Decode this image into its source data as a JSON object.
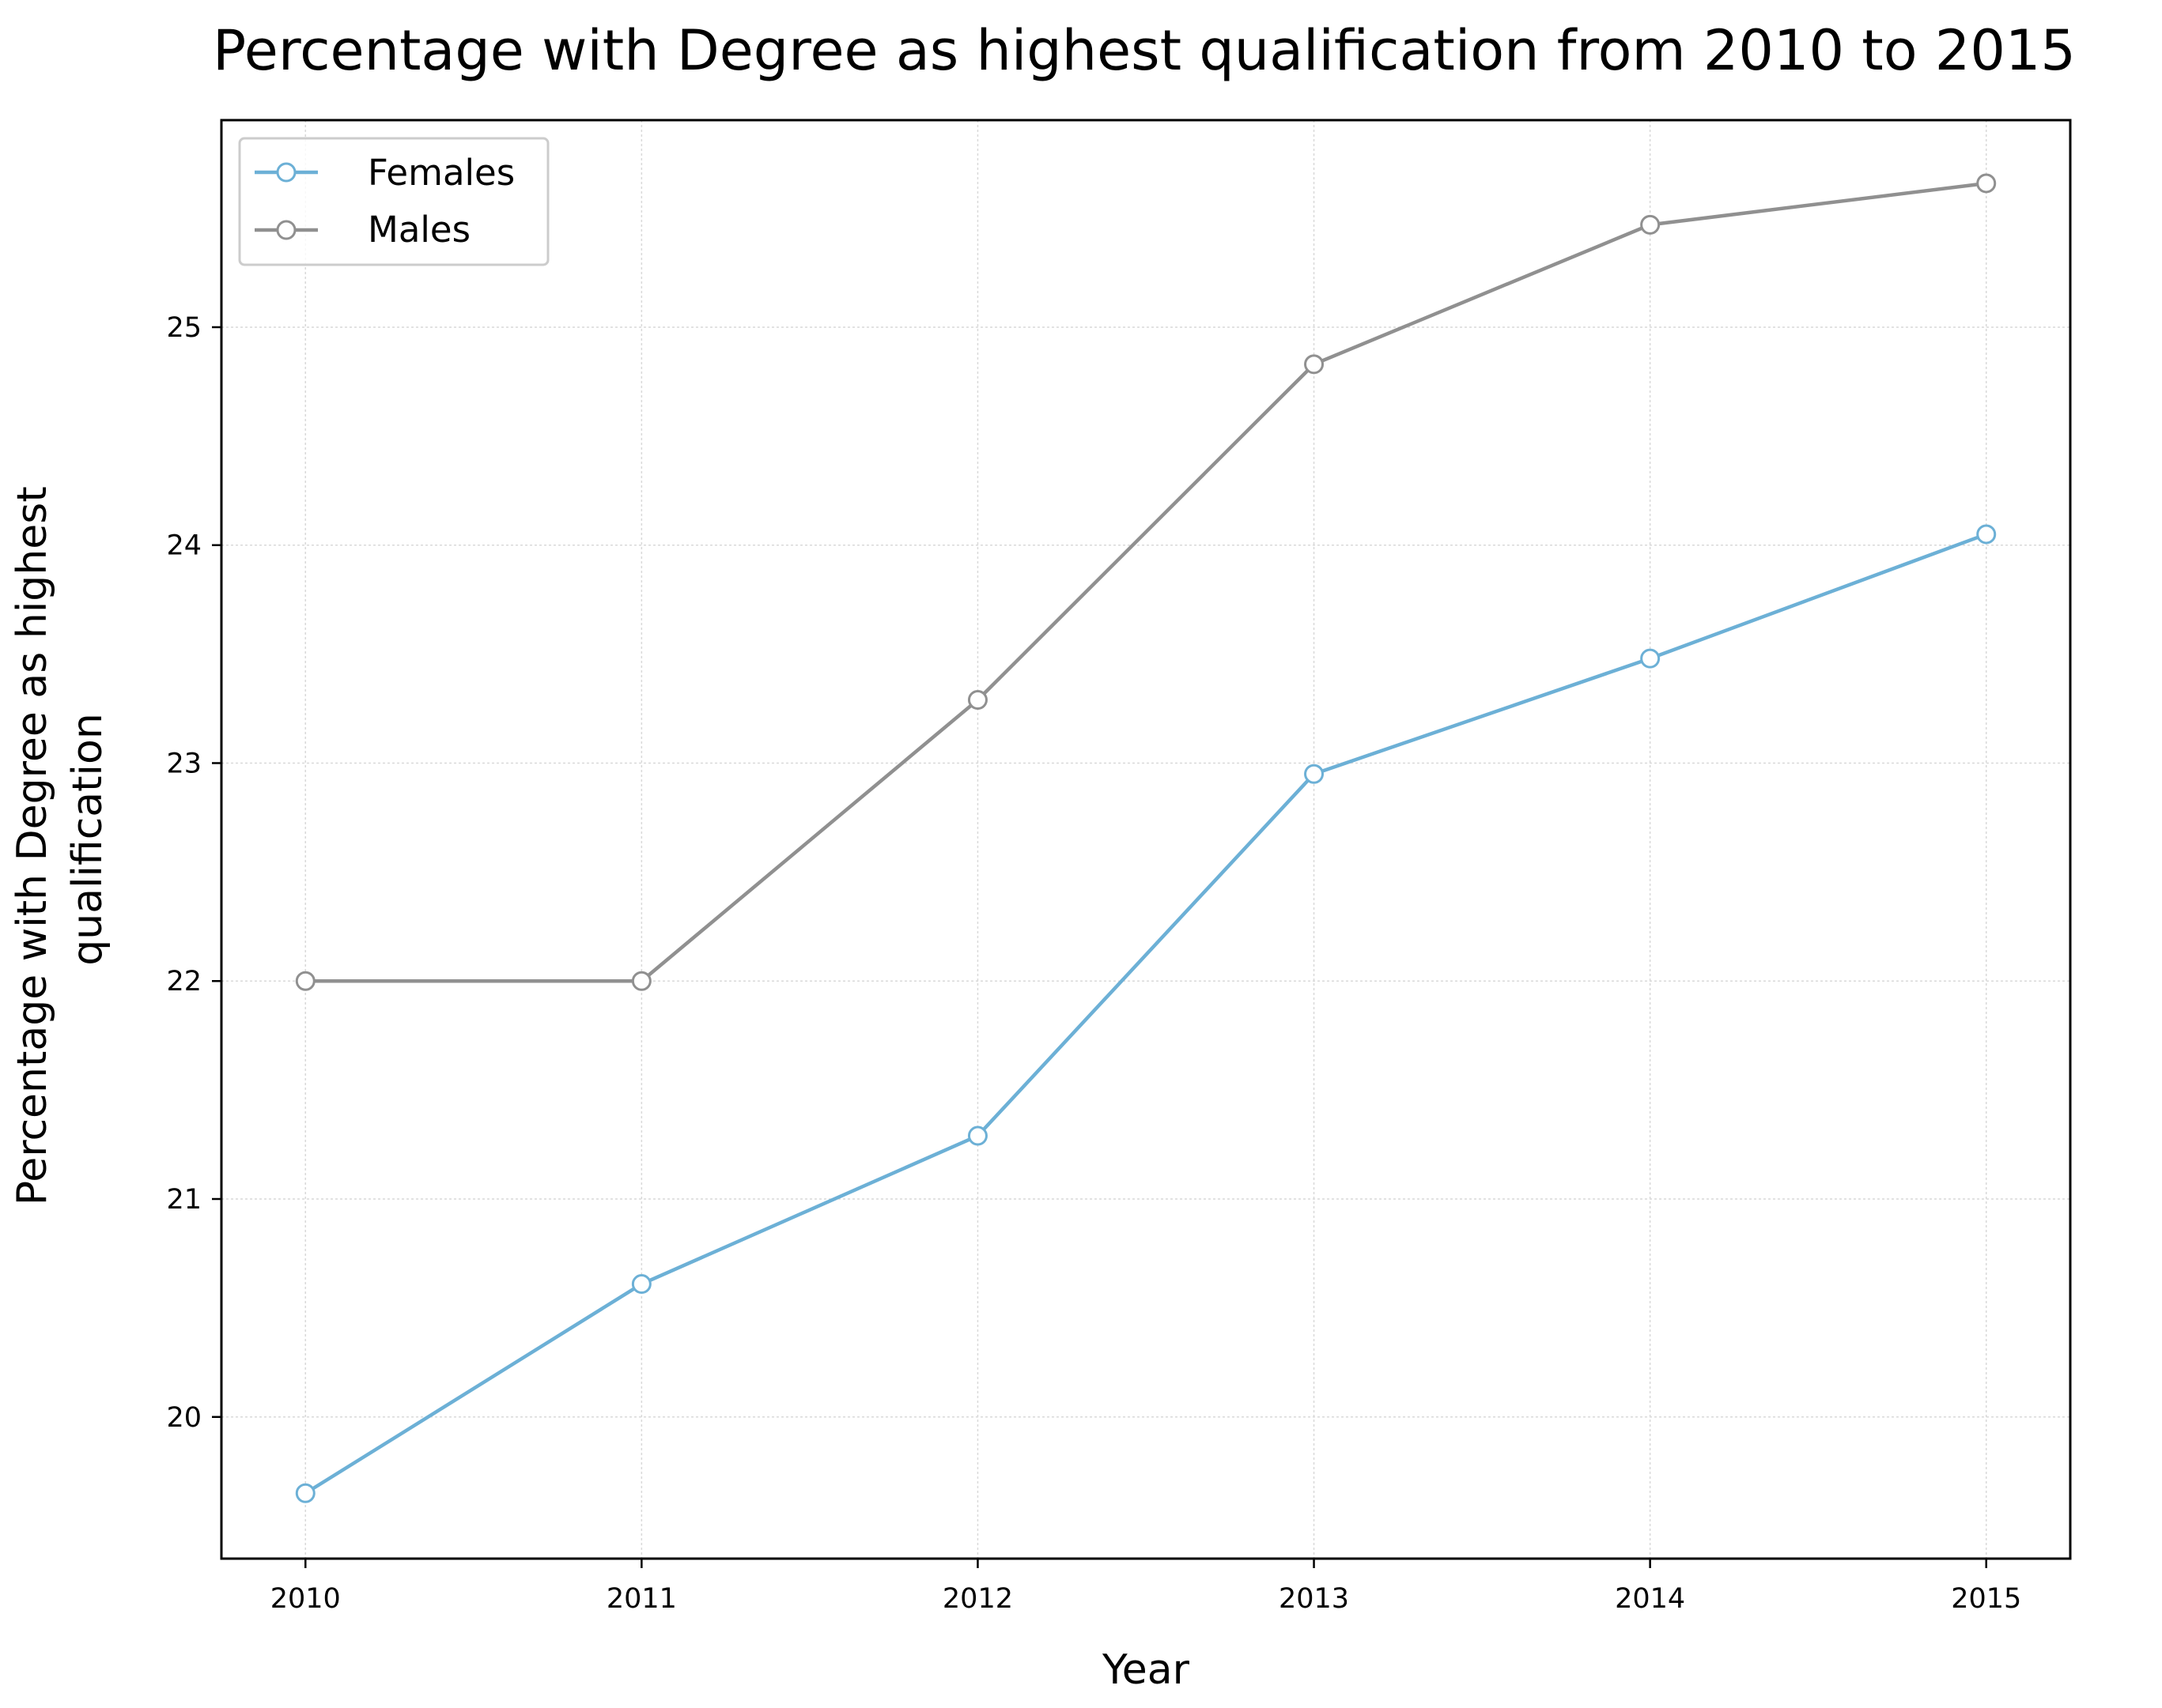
{
  "chart_data": {
    "type": "line",
    "title": "Percentage with Degree as highest qualification from 2010 to 2015",
    "xlabel": "Year",
    "ylabel_lines": [
      "Percentage with Degree as highest",
      "qualification"
    ],
    "x": [
      2010,
      2011,
      2012,
      2013,
      2014,
      2015
    ],
    "x_tick_labels": [
      "2010",
      "2011",
      "2012",
      "2013",
      "2014",
      "2015"
    ],
    "y_ticks": [
      20,
      21,
      22,
      23,
      24,
      25
    ],
    "y_tick_labels": [
      "20",
      "21",
      "22",
      "23",
      "24",
      "25"
    ],
    "xlim": [
      2009.75,
      2015.25
    ],
    "ylim": [
      19.35,
      25.95
    ],
    "grid": true,
    "legend_position": "top-left",
    "series": [
      {
        "name": "Females",
        "color": "#6cb0d6",
        "values": [
          19.65,
          20.61,
          21.29,
          22.95,
          23.48,
          24.05
        ]
      },
      {
        "name": "Males",
        "color": "#909090",
        "values": [
          22.0,
          22.0,
          23.29,
          24.83,
          25.47,
          25.66
        ]
      }
    ]
  }
}
